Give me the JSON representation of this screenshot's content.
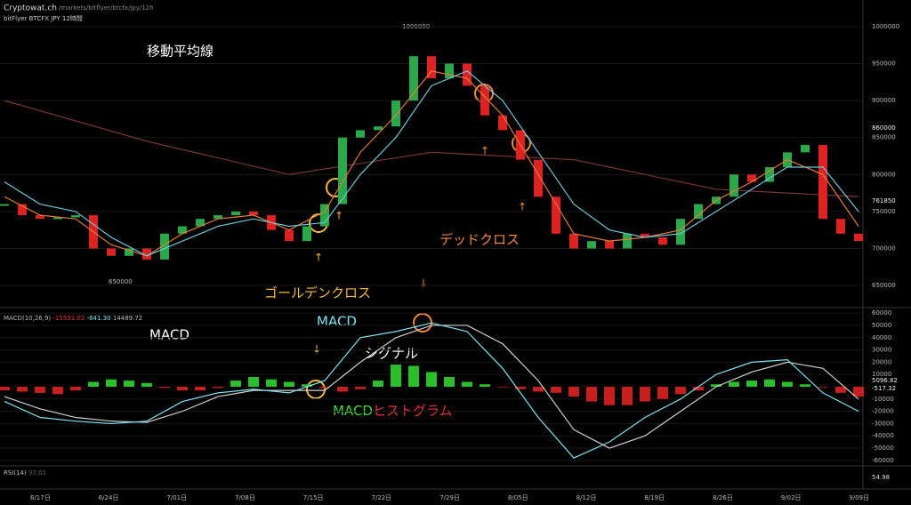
{
  "header": {
    "site": "Cryptowat.ch",
    "path": "/markets/bitflyer/btcfx/jpy/12h",
    "market": "bitFlyer BTCFX JPY 12時間"
  },
  "annotations": {
    "ma_title": "移動平均線",
    "golden": "ゴールデンクロス",
    "dead": "デッドクロス",
    "macd_title": "MACD",
    "macd_line": "MACD",
    "signal": "シグナル",
    "hist_a": "MACD",
    "hist_b": "ヒストグラム"
  },
  "price": {
    "yticks": [
      1000000,
      950000,
      900000,
      850000,
      800000,
      750000,
      700000,
      650000
    ],
    "ylim": [
      620000,
      1036000
    ],
    "high_label": "1000000",
    "low_label": "650000",
    "marker_a": "860000",
    "marker_b": "761850",
    "close": [
      760000,
      745000,
      740000,
      742000,
      745000,
      700000,
      690000,
      700000,
      685000,
      720000,
      730000,
      740000,
      745000,
      750000,
      745000,
      725000,
      710000,
      730000,
      760000,
      850000,
      860000,
      865000,
      900000,
      960000,
      930000,
      950000,
      920000,
      880000,
      860000,
      820000,
      770000,
      720000,
      700000,
      710000,
      700000,
      720000,
      715000,
      705000,
      740000,
      760000,
      770000,
      800000,
      790000,
      810000,
      830000,
      840000,
      740000,
      720000,
      710000
    ],
    "ma_fast": [
      770000,
      745000,
      740000,
      705000,
      690000,
      720000,
      740000,
      745000,
      725000,
      750000,
      830000,
      880000,
      940000,
      930000,
      880000,
      800000,
      720000,
      710000,
      715000,
      725000,
      765000,
      790000,
      820000,
      800000,
      730000
    ],
    "ma_mid": [
      790000,
      760000,
      750000,
      715000,
      690000,
      710000,
      730000,
      740000,
      730000,
      735000,
      800000,
      850000,
      920000,
      940000,
      900000,
      830000,
      760000,
      725000,
      715000,
      720000,
      750000,
      780000,
      810000,
      810000,
      750000
    ],
    "ma_long": [
      900000,
      845000,
      800000,
      830000,
      820000,
      780000,
      770000
    ]
  },
  "macd": {
    "legend": "MACD(10,26,9)",
    "v1": "-15531.02",
    "v2": "-641.30",
    "v3": "14489.72",
    "ylim": [
      -63000,
      63000
    ],
    "yticks": [
      60000,
      50000,
      40000,
      30000,
      20000,
      10000,
      -10000,
      -20000,
      -30000,
      -40000,
      -50000,
      -60000
    ],
    "marker_a": "5096.82",
    "marker_b": "-517.32",
    "macd": [
      -12000,
      -25000,
      -28000,
      -30000,
      -28000,
      -12000,
      -5000,
      -2000,
      -5000,
      5000,
      40000,
      45000,
      52000,
      45000,
      15000,
      -25000,
      -58000,
      -45000,
      -25000,
      -10000,
      10000,
      20000,
      22000,
      -5000,
      -20000
    ],
    "signal": [
      -8000,
      -18000,
      -25000,
      -28000,
      -29000,
      -20000,
      -8000,
      -3000,
      -3000,
      -3000,
      20000,
      40000,
      50000,
      50000,
      35000,
      5000,
      -35000,
      -50000,
      -40000,
      -20000,
      0,
      12000,
      20000,
      15000,
      -10000
    ],
    "hist": [
      -3000,
      -4000,
      -5000,
      -6000,
      -3000,
      4000,
      6000,
      5000,
      3000,
      -1000,
      -3000,
      -3000,
      -1000,
      5000,
      8000,
      6000,
      4000,
      2000,
      -1000,
      -4000,
      -2000,
      5000,
      18000,
      17000,
      12000,
      8000,
      4000,
      2000,
      -500,
      -2000,
      -4000,
      -5000,
      -8000,
      -12000,
      -15000,
      -15000,
      -12000,
      -10000,
      -6000,
      -3000,
      2000,
      4000,
      5000,
      6000,
      4000,
      2000,
      -500,
      -5000,
      -8000
    ]
  },
  "rsi": {
    "legend": "RSI(14)",
    "value": "37.01",
    "right": "54.98"
  },
  "dates": [
    "6/17日",
    "6/24日",
    "7/01日",
    "7/08日",
    "7/15日",
    "7/22日",
    "7/29日",
    "8/05日",
    "8/12日",
    "8/19日",
    "8/26日",
    "9/02日",
    "9/09日"
  ]
}
